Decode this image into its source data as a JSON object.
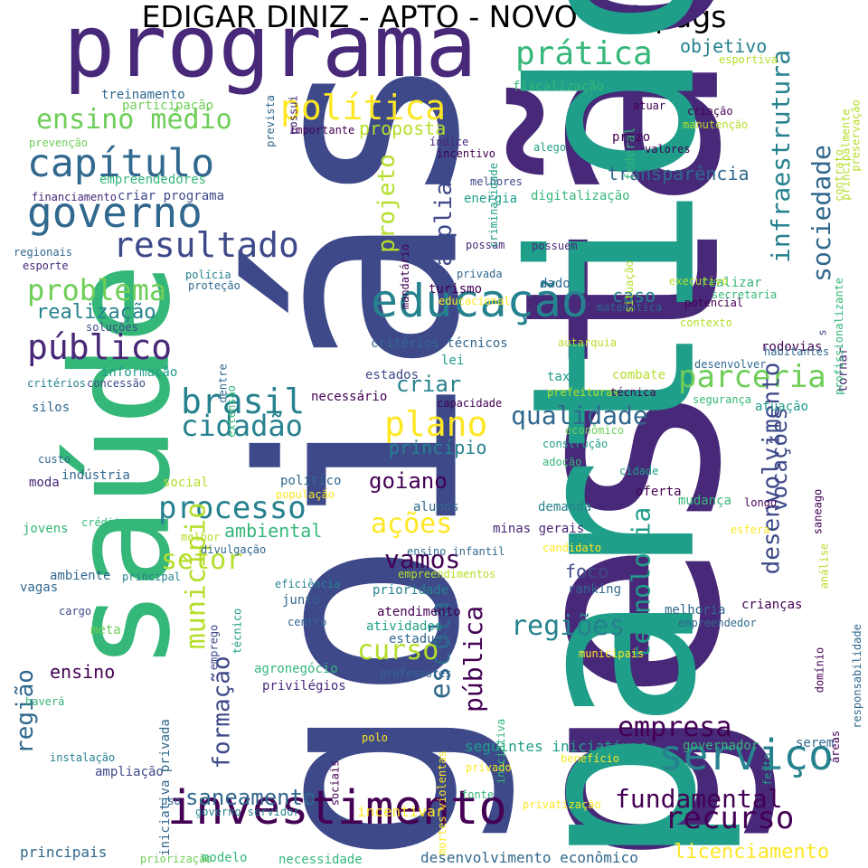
{
  "title": "EDIGAR DINIZ - APTO - NOVO - 49 págs",
  "palette": [
    "#440154",
    "#482878",
    "#3e4989",
    "#31688e",
    "#26828e",
    "#1f9e89",
    "#35b779",
    "#6ece58",
    "#b5de2b",
    "#fde725"
  ],
  "words": [
    {
      "text": "goiás",
      "color": "#3e4989"
    },
    {
      "text": "gestão",
      "color": "#482878"
    },
    {
      "text": "partido",
      "color": "#1f9e89"
    },
    {
      "text": "saúde",
      "color": "#35b779"
    },
    {
      "text": "programa",
      "color": "#482878"
    },
    {
      "text": "investimento",
      "color": "#440154"
    },
    {
      "text": "educação",
      "color": "#26828e"
    },
    {
      "text": "serviço",
      "color": "#26828e"
    },
    {
      "text": "governo",
      "color": "#31688e"
    },
    {
      "text": "capítulo",
      "color": "#31688e"
    },
    {
      "text": "resultado",
      "color": "#3e4989"
    },
    {
      "text": "política",
      "color": "#fde725"
    },
    {
      "text": "público",
      "color": "#482878"
    },
    {
      "text": "brasil",
      "color": "#26828e"
    },
    {
      "text": "plano",
      "color": "#fde725"
    },
    {
      "text": "prática",
      "color": "#35b779"
    },
    {
      "text": "ensino médio",
      "color": "#6ece58"
    },
    {
      "text": "problema",
      "color": "#6ece58"
    },
    {
      "text": "processo",
      "color": "#26828e"
    },
    {
      "text": "parceria",
      "color": "#6ece58"
    },
    {
      "text": "recurso",
      "color": "#440154"
    },
    {
      "text": "empresa",
      "color": "#440154"
    },
    {
      "text": "fundamental",
      "color": "#440154"
    },
    {
      "text": "tecnologia",
      "color": "#1f9e89"
    },
    {
      "text": "desenvolvimento",
      "color": "#3e4989"
    },
    {
      "text": "infraestrutura",
      "color": "#26828e"
    },
    {
      "text": "sociedade",
      "color": "#31688e"
    },
    {
      "text": "cidadão",
      "color": "#26828e"
    },
    {
      "text": "qualidade",
      "color": "#31688e"
    },
    {
      "text": "município",
      "color": "#b5de2b"
    },
    {
      "text": "formação",
      "color": "#3e4989"
    },
    {
      "text": "projeto",
      "color": "#b5de2b"
    },
    {
      "text": "ampliar",
      "color": "#3e4989"
    },
    {
      "text": "regiões",
      "color": "#26828e"
    },
    {
      "text": "escola",
      "color": "#31688e"
    },
    {
      "text": "pública",
      "color": "#440154"
    },
    {
      "text": "ações",
      "color": "#fde725"
    },
    {
      "text": "setor",
      "color": "#b5de2b"
    },
    {
      "text": "vamos",
      "color": "#440154"
    },
    {
      "text": "curso",
      "color": "#b5de2b"
    },
    {
      "text": "goiano",
      "color": "#440154"
    },
    {
      "text": "vocações",
      "color": "#3e4989"
    },
    {
      "text": "saneamento",
      "color": "#31688e"
    },
    {
      "text": "licenciamento",
      "color": "#fde725"
    },
    {
      "text": "região",
      "color": "#31688e"
    },
    {
      "text": "realização",
      "color": "#26828e"
    },
    {
      "text": "criar",
      "color": "#26828e"
    },
    {
      "text": "transparência",
      "color": "#31688e"
    },
    {
      "text": "objetivo",
      "color": "#26828e"
    },
    {
      "text": "proposta",
      "color": "#b5de2b"
    },
    {
      "text": "princípio",
      "color": "#26828e"
    },
    {
      "text": "ambiental",
      "color": "#35b779"
    },
    {
      "text": "caso",
      "color": "#26828e"
    },
    {
      "text": "foco",
      "color": "#3e4989"
    },
    {
      "text": "ensino",
      "color": "#440154"
    },
    {
      "text": "critérios técnicos",
      "color": "#31688e"
    },
    {
      "text": "treinamento",
      "color": "#31688e"
    },
    {
      "text": "participação",
      "color": "#6ece58"
    },
    {
      "text": "empreendedores",
      "color": "#35b779"
    },
    {
      "text": "financiamento",
      "color": "#482878"
    },
    {
      "text": "criar programa",
      "color": "#3e4989"
    },
    {
      "text": "regionais",
      "color": "#31688e"
    },
    {
      "text": "esporte",
      "color": "#482878"
    },
    {
      "text": "polícia",
      "color": "#26828e"
    },
    {
      "text": "proteção",
      "color": "#31688e"
    },
    {
      "text": "soluções",
      "color": "#3e4989"
    },
    {
      "text": "informação",
      "color": "#1f9e89"
    },
    {
      "text": "critérios",
      "color": "#26828e"
    },
    {
      "text": "concessão",
      "color": "#3e4989"
    },
    {
      "text": "silos",
      "color": "#31688e"
    },
    {
      "text": "custo",
      "color": "#31688e"
    },
    {
      "text": "moda",
      "color": "#482878"
    },
    {
      "text": "indústria",
      "color": "#31688e"
    },
    {
      "text": "social",
      "color": "#b5de2b"
    },
    {
      "text": "jovens",
      "color": "#35b779"
    },
    {
      "text": "crédito",
      "color": "#35b779"
    },
    {
      "text": "ambiente",
      "color": "#31688e"
    },
    {
      "text": "principal",
      "color": "#26828e"
    },
    {
      "text": "vagas",
      "color": "#31688e"
    },
    {
      "text": "cargo",
      "color": "#3e4989"
    },
    {
      "text": "meta",
      "color": "#6ece58"
    },
    {
      "text": "haverá",
      "color": "#35b779"
    },
    {
      "text": "instalação",
      "color": "#26828e"
    },
    {
      "text": "ampliação",
      "color": "#3e4989"
    },
    {
      "text": "uso",
      "color": "#31688e"
    },
    {
      "text": "principais",
      "color": "#31688e"
    },
    {
      "text": "priorização",
      "color": "#6ece58"
    },
    {
      "text": "modelo",
      "color": "#35b779"
    },
    {
      "text": "necessidade",
      "color": "#35b779"
    },
    {
      "text": "desenvolvimento econômico",
      "color": "#31688e"
    },
    {
      "text": "incentivar",
      "color": "#fde725"
    },
    {
      "text": "governo servidor",
      "color": "#26828e"
    },
    {
      "text": "fonte",
      "color": "#35b779"
    },
    {
      "text": "privatização",
      "color": "#fde725"
    },
    {
      "text": "privado",
      "color": "#fde725"
    },
    {
      "text": "polo",
      "color": "#fde725"
    },
    {
      "text": "seguintes iniciativas",
      "color": "#1f9e89"
    },
    {
      "text": "governador",
      "color": "#35b779"
    },
    {
      "text": "serem",
      "color": "#31688e"
    },
    {
      "text": "benefício",
      "color": "#fde725"
    },
    {
      "text": "agronegócio",
      "color": "#35b779"
    },
    {
      "text": "privilégios",
      "color": "#482878"
    },
    {
      "text": "professores",
      "color": "#31688e"
    },
    {
      "text": "atendimento",
      "color": "#440154"
    },
    {
      "text": "atividades",
      "color": "#1f9e89"
    },
    {
      "text": "estadual",
      "color": "#31688e"
    },
    {
      "text": "prioridade",
      "color": "#26828e"
    },
    {
      "text": "junto",
      "color": "#31688e"
    },
    {
      "text": "centro",
      "color": "#31688e"
    },
    {
      "text": "eficiência",
      "color": "#26828e"
    },
    {
      "text": "minas gerais",
      "color": "#482878"
    },
    {
      "text": "demanda",
      "color": "#26828e"
    },
    {
      "text": "oferta",
      "color": "#440154"
    },
    {
      "text": "mudança",
      "color": "#35b779"
    },
    {
      "text": "longo",
      "color": "#440154"
    },
    {
      "text": "cidade",
      "color": "#1f9e89"
    },
    {
      "text": "adoção",
      "color": "#35b779"
    },
    {
      "text": "construção",
      "color": "#1f9e89"
    },
    {
      "text": "econômico",
      "color": "#6ece58"
    },
    {
      "text": "capacidade",
      "color": "#440154"
    },
    {
      "text": "prefeituras",
      "color": "#b5de2b"
    },
    {
      "text": "técnica",
      "color": "#440154"
    },
    {
      "text": "segurança",
      "color": "#35b779"
    },
    {
      "text": "atuação",
      "color": "#1f9e89"
    },
    {
      "text": "combate",
      "color": "#b5de2b"
    },
    {
      "text": "taxa",
      "color": "#1f9e89"
    },
    {
      "text": "estados",
      "color": "#3e4989"
    },
    {
      "text": "lei",
      "color": "#1f9e89"
    },
    {
      "text": "necessário",
      "color": "#440154"
    },
    {
      "text": "autarquia",
      "color": "#b5de2b"
    },
    {
      "text": "contexto",
      "color": "#b5de2b"
    },
    {
      "text": "rodovias",
      "color": "#440154"
    },
    {
      "text": "habitantes",
      "color": "#31688e"
    },
    {
      "text": "desenvolver",
      "color": "#31688e"
    },
    {
      "text": "tornar",
      "color": "#482878"
    },
    {
      "text": "potencial",
      "color": "#440154"
    },
    {
      "text": "secretaria",
      "color": "#35b779"
    },
    {
      "text": "realizar",
      "color": "#35b779"
    },
    {
      "text": "executivo",
      "color": "#b5de2b"
    },
    {
      "text": "matemática",
      "color": "#31688e"
    },
    {
      "text": "educacional",
      "color": "#fde725"
    },
    {
      "text": "turismo",
      "color": "#440154"
    },
    {
      "text": "dado",
      "color": "#31688e"
    },
    {
      "text": "privada",
      "color": "#31688e"
    },
    {
      "text": "possam",
      "color": "#482878"
    },
    {
      "text": "possuem",
      "color": "#482878"
    },
    {
      "text": "energia",
      "color": "#1f9e89"
    },
    {
      "text": "digitalização",
      "color": "#35b779"
    },
    {
      "text": "melhores",
      "color": "#3e4989"
    },
    {
      "text": "incentivo",
      "color": "#440154"
    },
    {
      "text": "índice",
      "color": "#482878"
    },
    {
      "text": "alego",
      "color": "#1f9e89"
    },
    {
      "text": "prazo",
      "color": "#440154"
    },
    {
      "text": "valores",
      "color": "#440154"
    },
    {
      "text": "criação",
      "color": "#440154"
    },
    {
      "text": "manutenção",
      "color": "#b5de2b"
    },
    {
      "text": "atuar",
      "color": "#440154"
    },
    {
      "text": "fiscalização",
      "color": "#35b779"
    },
    {
      "text": "esportiva",
      "color": "#b5de2b"
    },
    {
      "text": "importante",
      "color": "#440154"
    },
    {
      "text": "prevenção",
      "color": "#6ece58"
    },
    {
      "text": "crianças",
      "color": "#440154"
    },
    {
      "text": "melhoria",
      "color": "#31688e"
    },
    {
      "text": "empreendedor",
      "color": "#31688e"
    },
    {
      "text": "ranking",
      "color": "#31688e"
    },
    {
      "text": "empreendimentos",
      "color": "#b5de2b"
    },
    {
      "text": "ensino infantil",
      "color": "#31688e"
    },
    {
      "text": "candidato",
      "color": "#fde725"
    },
    {
      "text": "esfera",
      "color": "#fde725"
    },
    {
      "text": "municipais",
      "color": "#fde725"
    },
    {
      "text": "alunos",
      "color": "#31688e"
    },
    {
      "text": "político",
      "color": "#31688e"
    },
    {
      "text": "população",
      "color": "#fde725"
    },
    {
      "text": "melhor",
      "color": "#b5de2b"
    },
    {
      "text": "divulgação",
      "color": "#31688e"
    },
    {
      "text": "emprego",
      "color": "#3e4989"
    },
    {
      "text": "iniciativa privada",
      "color": "#31688e"
    },
    {
      "text": "técnico",
      "color": "#1f9e89"
    },
    {
      "text": "dentre",
      "color": "#31688e"
    },
    {
      "text": "extensão",
      "color": "#35b779"
    },
    {
      "text": "mandatário",
      "color": "#440154"
    },
    {
      "text": "prevista",
      "color": "#31688e"
    },
    {
      "text": "possui",
      "color": "#482878"
    },
    {
      "text": "criminalidade",
      "color": "#1f9e89"
    },
    {
      "text": "federal",
      "color": "#35b779"
    },
    {
      "text": "contrato",
      "color": "#b5de2b"
    },
    {
      "text": "situação",
      "color": "#b5de2b"
    },
    {
      "text": "profissionalizante",
      "color": "#35b779"
    },
    {
      "text": "principalmente",
      "color": "#b5de2b"
    },
    {
      "text": "preservação",
      "color": "#b5de2b"
    },
    {
      "text": "saneago",
      "color": "#440154"
    },
    {
      "text": "análise",
      "color": "#b5de2b"
    },
    {
      "text": "responsabilidade",
      "color": "#31688e"
    },
    {
      "text": "domínio",
      "color": "#440154"
    },
    {
      "text": "áreas",
      "color": "#440154"
    },
    {
      "text": "feito",
      "color": "#1f9e89"
    },
    {
      "text": "s",
      "color": "#3e4989"
    },
    {
      "text": "sociais",
      "color": "#440154"
    },
    {
      "text": "mortes violentas",
      "color": "#fde725"
    },
    {
      "text": "iniciativa",
      "color": "#35b779"
    }
  ]
}
